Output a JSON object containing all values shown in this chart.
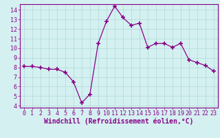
{
  "x": [
    0,
    1,
    2,
    3,
    4,
    5,
    6,
    7,
    8,
    9,
    10,
    11,
    12,
    13,
    14,
    15,
    16,
    17,
    18,
    19,
    20,
    21,
    22,
    23
  ],
  "y": [
    8.1,
    8.1,
    8.0,
    7.8,
    7.8,
    7.5,
    6.5,
    4.3,
    5.2,
    10.5,
    12.8,
    14.4,
    13.2,
    12.4,
    12.6,
    10.1,
    10.5,
    10.5,
    10.1,
    10.5,
    8.8,
    8.5,
    8.2,
    7.6
  ],
  "line_color": "#880088",
  "marker": "+",
  "marker_size": 4,
  "marker_lw": 1.2,
  "background_color": "#d4f0f0",
  "grid_color": "#b0d8d8",
  "xlabel": "Windchill (Refroidissement éolien,°C)",
  "xlim": [
    -0.5,
    23.5
  ],
  "ylim": [
    3.8,
    14.6
  ],
  "yticks": [
    4,
    5,
    6,
    7,
    8,
    9,
    10,
    11,
    12,
    13,
    14
  ],
  "xticks": [
    0,
    1,
    2,
    3,
    4,
    5,
    6,
    7,
    8,
    9,
    10,
    11,
    12,
    13,
    14,
    15,
    16,
    17,
    18,
    19,
    20,
    21,
    22,
    23
  ],
  "tick_label_fontsize": 6,
  "xlabel_fontsize": 7,
  "xlabel_color": "#880088",
  "tick_color": "#880088",
  "spine_color": "#880088",
  "line_width": 0.9
}
